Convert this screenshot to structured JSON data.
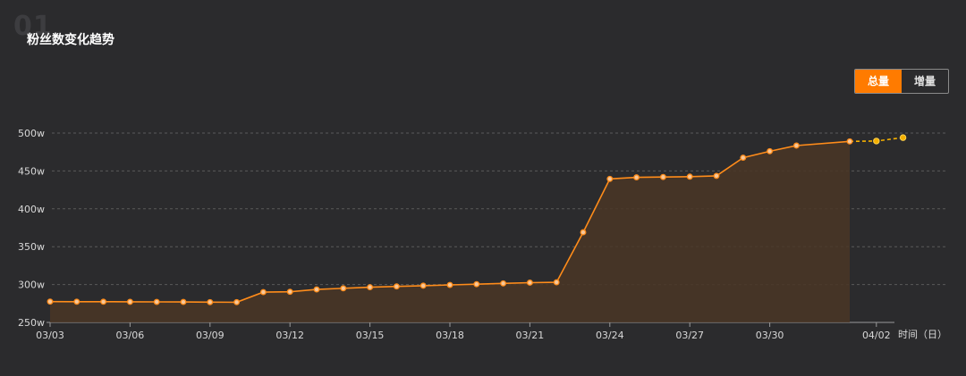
{
  "header": {
    "section_number": "01",
    "title": "粉丝数变化趋势"
  },
  "toggle": {
    "options": [
      "总量",
      "增量"
    ],
    "selected": "总量"
  },
  "colors": {
    "background": "#2b2b2d",
    "line": "#ff8c1a",
    "area": "#4a3626",
    "forecast": "#f5b000",
    "grid": "#5a5a5a",
    "accent": "#ff7b00"
  },
  "chart_data": {
    "type": "line",
    "x_unit_label": "时间（日）",
    "y_unit_suffix": "w",
    "ylim": [
      250,
      500
    ],
    "y_ticks": [
      "250w",
      "300w",
      "350w",
      "400w",
      "450w",
      "500w"
    ],
    "x_ticks": [
      "03/03",
      "03/06",
      "03/09",
      "03/12",
      "03/15",
      "03/18",
      "03/21",
      "03/24",
      "03/27",
      "03/30",
      "04/02"
    ],
    "grid": true,
    "series": [
      {
        "kind": "actual",
        "x": [
          "03/03",
          "03/04",
          "03/05",
          "03/06",
          "03/07",
          "03/08",
          "03/09",
          "03/10",
          "03/11",
          "03/12",
          "03/13",
          "03/14",
          "03/15",
          "03/16",
          "03/17",
          "03/18",
          "03/19",
          "03/20",
          "03/21",
          "03/22",
          "03/23",
          "03/24",
          "03/25",
          "03/26",
          "03/27",
          "03/28",
          "03/29",
          "03/30",
          "03/31",
          "04/01"
        ],
        "values": [
          277.5,
          277.4,
          277.3,
          277.2,
          277.1,
          277.0,
          276.8,
          276.7,
          290,
          290.5,
          293.5,
          295,
          296.5,
          297.5,
          298.5,
          299.5,
          300.5,
          301.5,
          302.5,
          303,
          369,
          439.5,
          441.5,
          442,
          442.5,
          443.5,
          467.5,
          476,
          483.5,
          489
        ]
      },
      {
        "kind": "forecast",
        "x": [
          "04/01",
          "04/02",
          "04/03"
        ],
        "values": [
          489,
          489.5,
          494
        ]
      }
    ]
  }
}
